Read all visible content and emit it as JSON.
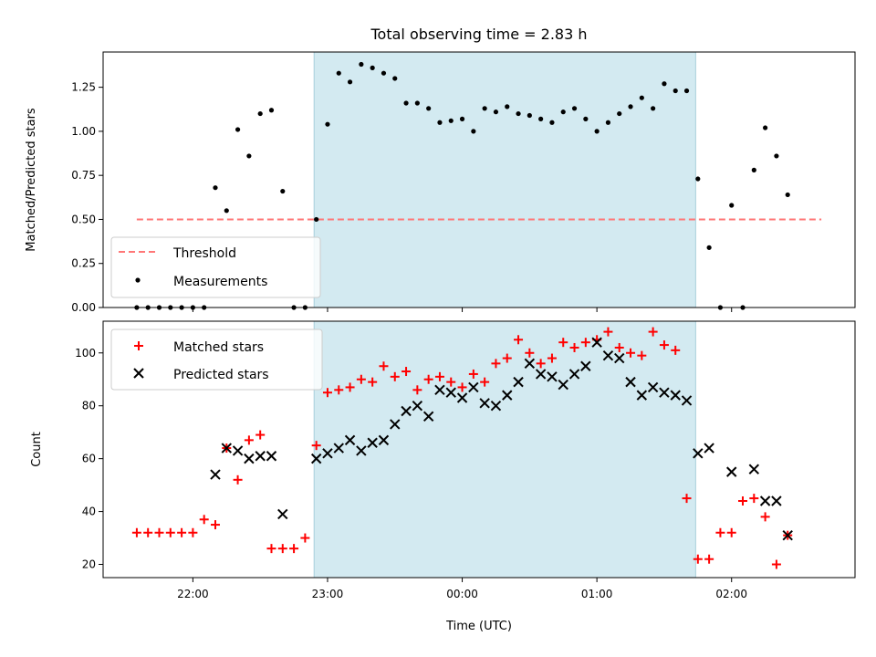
{
  "chart_data": [
    {
      "type": "scatter",
      "title": "Total observing time = 2.83 h",
      "xlabel": "",
      "ylabel": "Matched/Predicted stars",
      "x_unit": "time (UTC)",
      "ylim": [
        0,
        1.45
      ],
      "yticks": [
        0.0,
        0.25,
        0.5,
        0.75,
        1.0,
        1.25
      ],
      "ytick_labels": [
        "0.00",
        "0.25",
        "0.50",
        "0.75",
        "1.00",
        "1.25"
      ],
      "shaded_interval": {
        "start": "22:54",
        "end": "01:44",
        "color": "#d3eaf1"
      },
      "threshold": {
        "name": "Threshold",
        "value": 0.5,
        "x_start": "21:35",
        "x_end": "02:40",
        "color": "#ff7777"
      },
      "legend_position": "lower-left",
      "series": [
        {
          "name": "Measurements",
          "color": "#000000",
          "x": [
            "21:35",
            "21:40",
            "21:45",
            "21:50",
            "21:55",
            "22:00",
            "22:05",
            "22:10",
            "22:15",
            "22:20",
            "22:25",
            "22:30",
            "22:35",
            "22:40",
            "22:45",
            "22:50",
            "22:55",
            "23:00",
            "23:05",
            "23:10",
            "23:15",
            "23:20",
            "23:25",
            "23:30",
            "23:35",
            "23:40",
            "23:45",
            "23:50",
            "23:55",
            "00:00",
            "00:05",
            "00:10",
            "00:15",
            "00:20",
            "00:25",
            "00:30",
            "00:35",
            "00:40",
            "00:45",
            "00:50",
            "00:55",
            "01:00",
            "01:05",
            "01:10",
            "01:15",
            "01:20",
            "01:25",
            "01:30",
            "01:35",
            "01:40",
            "01:45",
            "01:50",
            "01:55",
            "02:00",
            "02:05",
            "02:10",
            "02:15",
            "02:20",
            "02:25"
          ],
          "y": [
            0,
            0,
            0,
            0,
            0,
            0,
            0,
            0.68,
            0.55,
            1.01,
            0.86,
            1.1,
            1.12,
            0.66,
            0,
            0,
            0.5,
            1.04,
            1.33,
            1.28,
            1.38,
            1.36,
            1.33,
            1.3,
            1.16,
            1.16,
            1.13,
            1.05,
            1.06,
            1.07,
            1.0,
            1.13,
            1.11,
            1.14,
            1.1,
            1.09,
            1.07,
            1.05,
            1.11,
            1.13,
            1.07,
            1.0,
            1.05,
            1.1,
            1.14,
            1.19,
            1.13,
            1.27,
            1.23,
            1.23,
            0.73,
            0.34,
            0,
            0.58,
            0,
            0.78,
            1.02,
            0.86,
            0.64
          ]
        }
      ]
    },
    {
      "type": "scatter",
      "title": "",
      "xlabel": "Time (UTC)",
      "ylabel": "Count",
      "x_unit": "time (UTC)",
      "ylim": [
        15,
        112
      ],
      "yticks": [
        20,
        40,
        60,
        80,
        100
      ],
      "ytick_labels": [
        "20",
        "40",
        "60",
        "80",
        "100"
      ],
      "xticks": [
        "22:00",
        "23:00",
        "00:00",
        "01:00",
        "02:00"
      ],
      "xlim": [
        "21:20",
        "02:55"
      ],
      "shaded_interval": {
        "start": "22:54",
        "end": "01:44",
        "color": "#d3eaf1"
      },
      "legend_position": "upper-left",
      "series": [
        {
          "name": "Matched stars",
          "marker": "+",
          "color": "#ff0000",
          "x": [
            "21:35",
            "21:40",
            "21:45",
            "21:50",
            "21:55",
            "22:00",
            "22:05",
            "22:10",
            "22:15",
            "22:20",
            "22:25",
            "22:30",
            "22:35",
            "22:40",
            "22:45",
            "22:50",
            "22:55",
            "23:00",
            "23:05",
            "23:10",
            "23:15",
            "23:20",
            "23:25",
            "23:30",
            "23:35",
            "23:40",
            "23:45",
            "23:50",
            "23:55",
            "00:00",
            "00:05",
            "00:10",
            "00:15",
            "00:20",
            "00:25",
            "00:30",
            "00:35",
            "00:40",
            "00:45",
            "00:50",
            "00:55",
            "01:00",
            "01:05",
            "01:10",
            "01:15",
            "01:20",
            "01:25",
            "01:30",
            "01:35",
            "01:40",
            "01:45",
            "01:50",
            "01:55",
            "02:00",
            "02:05",
            "02:10",
            "02:15",
            "02:20",
            "02:25"
          ],
          "y": [
            32,
            32,
            32,
            32,
            32,
            32,
            37,
            35,
            64,
            52,
            67,
            69,
            26,
            26,
            26,
            30,
            65,
            85,
            86,
            87,
            90,
            89,
            95,
            91,
            93,
            86,
            90,
            91,
            89,
            87,
            92,
            89,
            96,
            98,
            105,
            100,
            96,
            98,
            104,
            102,
            104,
            105,
            108,
            102,
            100,
            99,
            108,
            103,
            101,
            45,
            22,
            22,
            32,
            32,
            44,
            45,
            38,
            20,
            31
          ]
        },
        {
          "name": "Predicted stars",
          "marker": "x",
          "color": "#000000",
          "x": [
            "22:10",
            "22:15",
            "22:20",
            "22:25",
            "22:30",
            "22:35",
            "22:40",
            "22:55",
            "23:00",
            "23:05",
            "23:10",
            "23:15",
            "23:20",
            "23:25",
            "23:30",
            "23:35",
            "23:40",
            "23:45",
            "23:50",
            "23:55",
            "00:00",
            "00:05",
            "00:10",
            "00:15",
            "00:20",
            "00:25",
            "00:30",
            "00:35",
            "00:40",
            "00:45",
            "00:50",
            "00:55",
            "01:00",
            "01:05",
            "01:10",
            "01:15",
            "01:20",
            "01:25",
            "01:30",
            "01:35",
            "01:40",
            "01:45",
            "01:50",
            "02:00",
            "02:10",
            "02:15",
            "02:20",
            "02:25"
          ],
          "y": [
            54,
            64,
            63,
            60,
            61,
            61,
            39,
            60,
            62,
            64,
            67,
            63,
            66,
            67,
            73,
            78,
            80,
            76,
            86,
            85,
            83,
            87,
            81,
            80,
            84,
            89,
            96,
            92,
            91,
            88,
            92,
            95,
            104,
            99,
            98,
            89,
            84,
            87,
            85,
            84,
            82,
            62,
            64,
            55,
            56,
            44,
            44,
            31
          ]
        }
      ]
    }
  ]
}
